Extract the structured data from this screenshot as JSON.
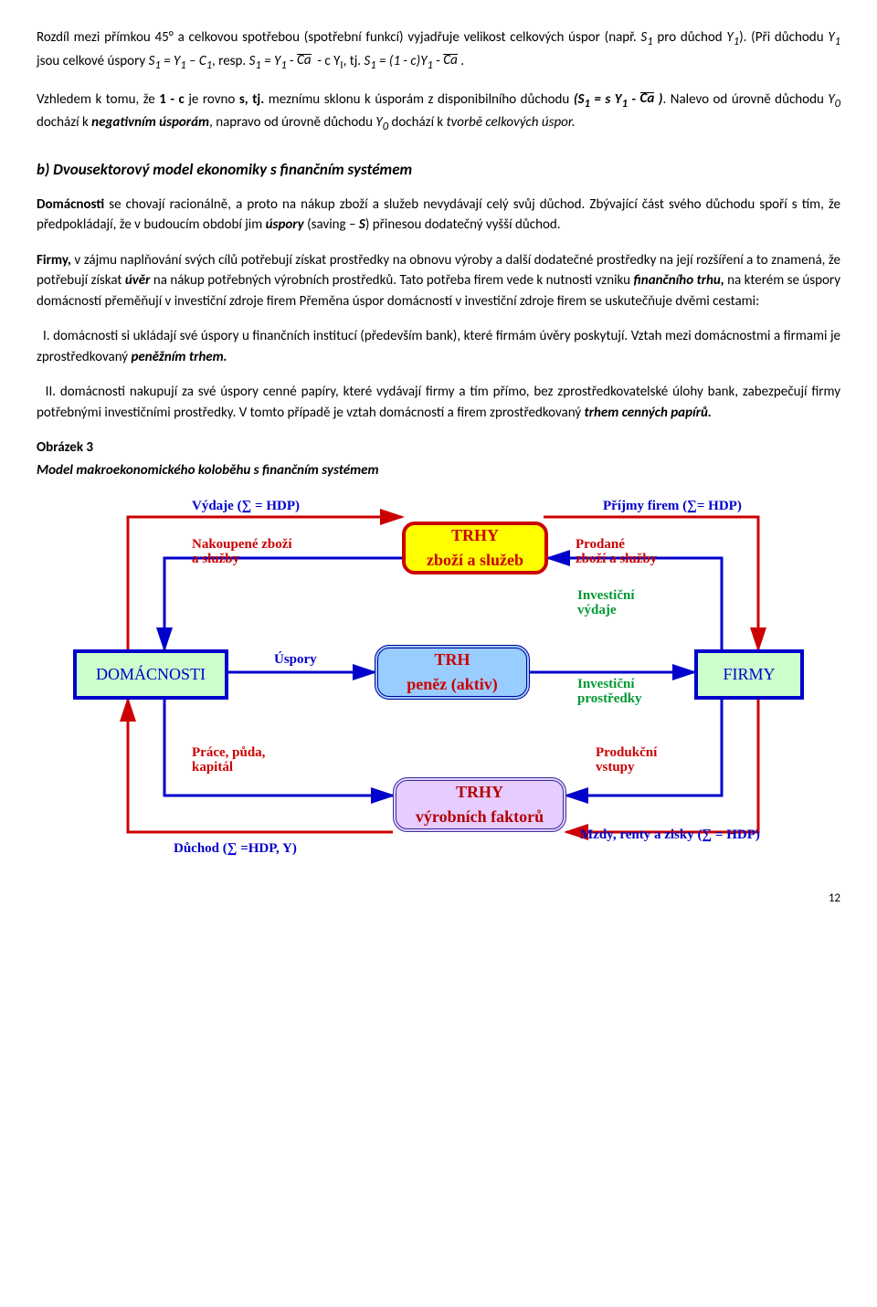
{
  "para1_html": "Rozdíl mezi přímkou 45° a celkovou spotřebou (spotřební funkcí) vyjadřuje velikost celkových úspor (např. <i>S<sub>1</sub></i> pro důchod <i>Y<sub>1</sub></i>). (Při důchodu <i>Y<sub>1</sub></i> jsou celkové úspory <i>S<sub>1</sub> = Y<sub>1</sub> – C<sub>1</sub></i>, resp. <i>S<sub>1</sub> = Y<sub>1</sub></i> -&nbsp;<span class='ov'><i>Ca</i></span>&nbsp; - c Y<sub>I</sub>, tj. <i>S<sub>1</sub> = (1 - c)Y<sub>1</sub></i> -&nbsp;<span class='ov'><i>Ca</i></span>&nbsp;.",
  "para2_html": "Vzhledem k tomu, že <b>1 - c</b> je rovno&nbsp;<b>s, tj.</b> meznímu sklonu k úsporám z disponibilního důchodu <b><i>(S<sub>1</sub> = s Y<sub>1</sub> -&nbsp;<span class='ov'>Ca</span>&nbsp;)</i></b>. Nalevo od úrovně důchodu <i>Y<sub>0</sub></i> dochází k <b><i>negativním úsporám</i></b>, napravo od úrovně důchodu <i>Y<sub>0</sub></i> dochází k <i>tvorbě celkových úspor.</i>",
  "heading_b": "b) Dvousektorový model ekonomiky s finančním systémem",
  "para3_html": "<b>Domácnosti</b> se chovají racionálně, a proto na nákup zboží a služeb nevydávají celý svůj důchod. Zbývající část svého důchodu spoří s tím, že předpokládají, že v budoucím období  jim <b><i>úspory</i></b> (saving – <b><i>S</i></b>) přinesou dodatečný vyšší důchod.",
  "para4_html": "<b>Firmy,</b> v zájmu naplňování svých cílů potřebují získat prostředky na obnovu výroby a další dodatečné prostředky na její rozšíření a to znamená, že potřebují získat <b><i>úvěr</i></b> na nákup potřebných výrobních prostředků. Tato potřeba firem vede k nutnosti vzniku <b><i>finančního trhu,</i></b> na kterém se úspory domácností přeměňují v investiční zdroje firem Přeměna úspor domácností v investiční zdroje firem se uskutečňuje dvěmi cestami:",
  "para5_html": "&nbsp;&nbsp;I. domácnosti si ukládají své úspory u finančních institucí (především bank), které firmám úvěry poskytují. Vztah mezi domácnostmi a firmami je zprostředkovaný <b><i>peněžním trhem.</i></b>",
  "para6_html": "&nbsp;&nbsp;II. domácnosti nakupují za své úspory cenné papíry, které vydávají firmy a tím přímo, bez zprostředkovatelské úlohy bank, zabezpečují firmy potřebnými investičními prostředky. V tomto případě je vztah domácností a firem zprostředkovaný <b><i>trhem cenných papírů.</i></b>",
  "obr_label": "Obrázek 3",
  "obr_title": "Model makroekonomického koloběhu s finančním systémem",
  "pagenum": "12",
  "diagram": {
    "boxes": {
      "domacnosti": "DOMÁCNOSTI",
      "firmy": "FIRMY",
      "trh_zbozi_1": "TRHY",
      "trh_zbozi_2": "zboží a služeb",
      "trh_penez_1": "TRH",
      "trh_penez_2": "peněz (aktiv)",
      "trh_vyrob_1": "TRHY",
      "trh_vyrob_2": "výrobních faktorů"
    },
    "labels": {
      "vydaje": "Výdaje (∑ = HDP)",
      "nakoupene1": "Nakoupené zboží",
      "nakoupene2": "a služby",
      "prijmy": "Příjmy firem (∑= HDP)",
      "prodane1": "Prodané",
      "prodane2": "zboží a služby",
      "uspory": "Úspory",
      "investvyd1": "Investiční",
      "investvyd2": "výdaje",
      "investpro1": "Investiční",
      "investpro2": "prostředky",
      "prace1": "Práce, půda,",
      "prace2": "kapitál",
      "produkc1": "Produkční",
      "produkc2": "vstupy",
      "duchod": "Důchod (∑ =HDP, Y)",
      "mzdy": "Mzdy, renty a zisky (∑ = HDP)"
    },
    "colors": {
      "blue_arrow": "#0000cc",
      "red_arrow": "#cc0000"
    }
  }
}
